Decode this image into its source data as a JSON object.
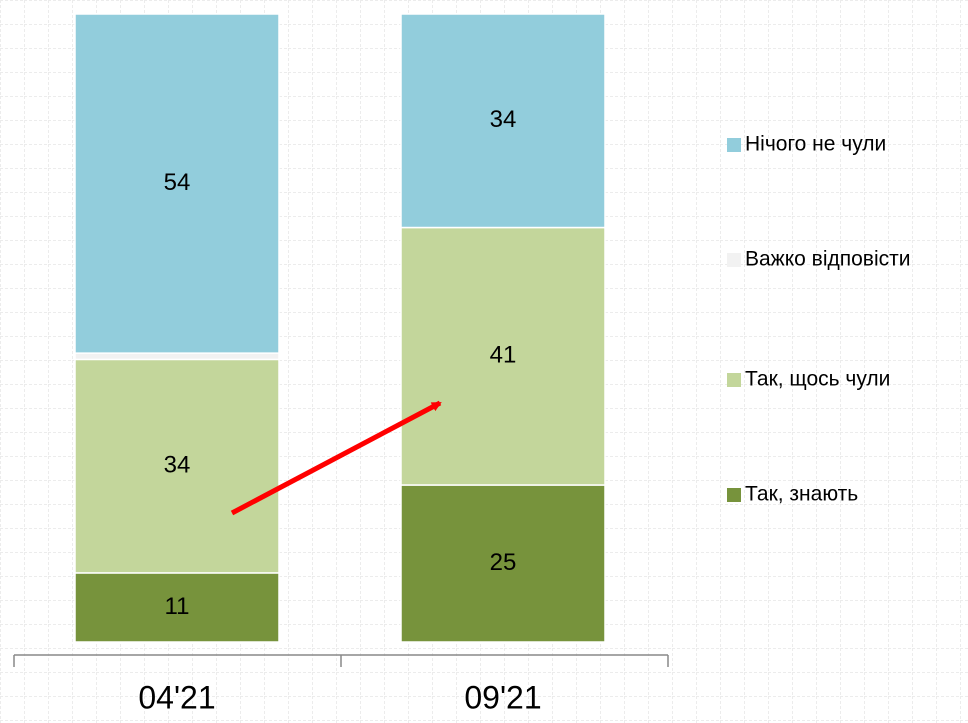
{
  "chart_data": {
    "type": "stacked_bar",
    "categories": [
      "04'21",
      "09'21"
    ],
    "series": [
      {
        "name": "Так, знають",
        "color": "#77933c",
        "values": [
          11,
          25
        ]
      },
      {
        "name": "Так, щось чули",
        "color": "#c3d69b",
        "values": [
          34,
          41
        ]
      },
      {
        "name": "Важко відповісти",
        "color": "#f2f2f2",
        "values": [
          1,
          0
        ]
      },
      {
        "name": "Нічого не чули",
        "color": "#92cddc",
        "values": [
          54,
          34
        ]
      }
    ],
    "ylim": [
      0,
      100
    ],
    "legend": "right"
  }
}
